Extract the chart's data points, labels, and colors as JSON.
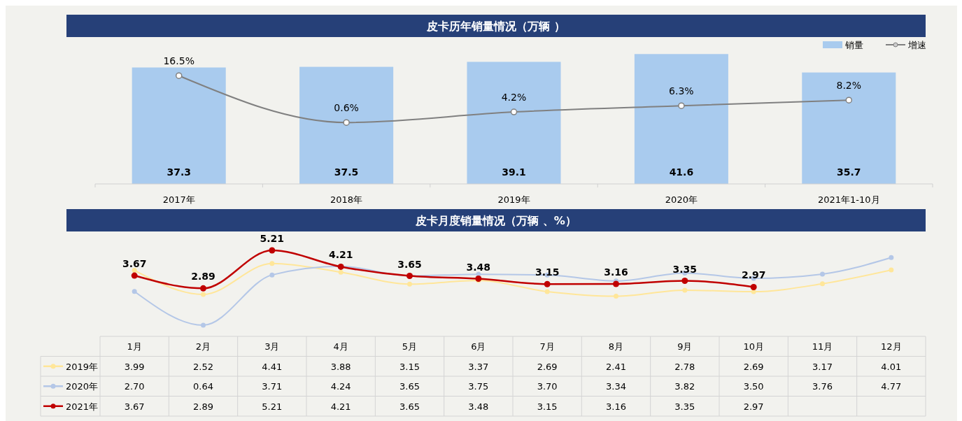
{
  "chart_data": [
    {
      "type": "bar",
      "title": "皮卡历年销量情况（万辆 ）",
      "categories": [
        "2017年",
        "2018年",
        "2019年",
        "2020年",
        "2021年1-10月"
      ],
      "series": [
        {
          "name": "销量",
          "type": "bar",
          "color": "#a9cbee",
          "values": [
            37.3,
            37.5,
            39.1,
            41.6,
            35.7
          ],
          "value_labels": [
            "37.3",
            "37.5",
            "39.1",
            "41.6",
            "35.7"
          ]
        },
        {
          "name": "增速",
          "type": "line",
          "axis": "y2",
          "color": "#808080",
          "values": [
            16.5,
            0.6,
            4.2,
            6.3,
            8.2
          ],
          "value_labels": [
            "16.5%",
            "0.6%",
            "4.2%",
            "6.3%",
            "8.2%"
          ]
        }
      ],
      "tick_labels": "x",
      "legend": "top right",
      "marker": "circle"
    },
    {
      "type": "line",
      "title": "皮卡月度销量情况（万辆 、%）",
      "categories": [
        "1月",
        "2月",
        "3月",
        "4月",
        "5月",
        "6月",
        "7月",
        "8月",
        "9月",
        "10月",
        "11月",
        "12月"
      ],
      "series": [
        {
          "name": "2019年",
          "color": "#ffe699",
          "values": [
            3.99,
            2.52,
            4.41,
            3.88,
            3.15,
            3.37,
            2.69,
            2.41,
            2.78,
            2.69,
            3.17,
            4.01
          ],
          "value_labels": [
            "3.99",
            "2.52",
            "4.41",
            "3.88",
            "3.15",
            "3.37",
            "2.69",
            "2.41",
            "2.78",
            "2.69",
            "3.17",
            "4.01"
          ]
        },
        {
          "name": "2020年",
          "color": "#b4c7e7",
          "values": [
            2.7,
            0.64,
            3.71,
            4.24,
            3.65,
            3.75,
            3.7,
            3.34,
            3.82,
            3.5,
            3.76,
            4.77
          ],
          "value_labels": [
            "2.70",
            "0.64",
            "3.71",
            "4.24",
            "3.65",
            "3.75",
            "3.70",
            "3.34",
            "3.82",
            "3.50",
            "3.76",
            "4.77"
          ]
        },
        {
          "name": "2021年",
          "color": "#c00000",
          "data_labels": true,
          "values": [
            3.67,
            2.89,
            5.21,
            4.21,
            3.65,
            3.48,
            3.15,
            3.16,
            3.35,
            2.97,
            null,
            null
          ],
          "value_labels": [
            "3.67",
            "2.89",
            "5.21",
            "4.21",
            "3.65",
            "3.48",
            "3.15",
            "3.16",
            "3.35",
            "2.97",
            null,
            null
          ]
        }
      ],
      "tick_labels": "x",
      "legend": "bottom left",
      "marker": "circle"
    }
  ]
}
